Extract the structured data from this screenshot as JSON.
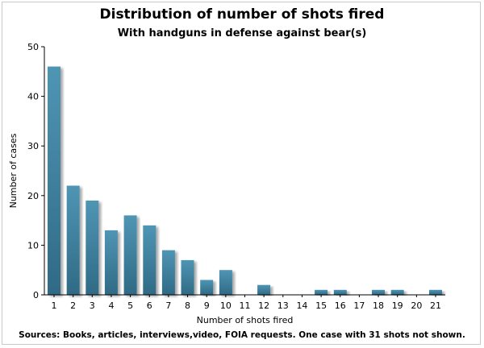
{
  "chart_data": {
    "type": "bar",
    "title": "Distribution of number of shots fired",
    "subtitle": "With handguns in defense against bear(s)",
    "xlabel": "Number of shots fired",
    "ylabel": "Number of cases",
    "footnote": "Sources: Books, articles, interviews,video, FOIA requests. One case with 31 shots not shown.",
    "categories": [
      "1",
      "2",
      "3",
      "4",
      "5",
      "6",
      "7",
      "8",
      "9",
      "10",
      "11",
      "12",
      "13",
      "14",
      "15",
      "16",
      "17",
      "18",
      "19",
      "20",
      "21"
    ],
    "values": [
      46,
      22,
      19,
      13,
      16,
      14,
      9,
      7,
      3,
      5,
      0,
      2,
      0,
      0,
      1,
      1,
      0,
      1,
      1,
      0,
      1
    ],
    "ylim": [
      0,
      50
    ],
    "yticks": [
      0,
      10,
      20,
      30,
      40,
      50
    ],
    "grid": false,
    "bar_color": "#4f95b4",
    "bar_color_dark": "#2f6a85"
  }
}
